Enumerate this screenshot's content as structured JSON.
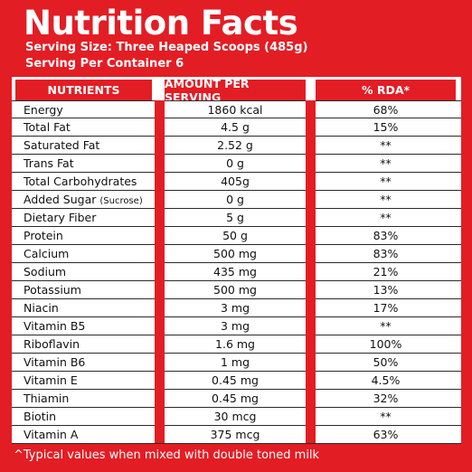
{
  "title": "Nutrition Facts",
  "serving_size": "Serving Size: Three Heaped Scoops (485g)",
  "servings_per_container": "Serving Per Container 6",
  "headers": {
    "nutrients": "NUTRIENTS",
    "amount": "AMOUNT PER SERVING",
    "rda": "% RDA*"
  },
  "rows": [
    {
      "name": "Energy",
      "note": "",
      "amount": "1860 kcal",
      "rda": "68%"
    },
    {
      "name": "Total Fat",
      "note": "",
      "amount": "4.5 g",
      "rda": "15%"
    },
    {
      "name": "Saturated Fat",
      "note": "",
      "amount": "2.52 g",
      "rda": "**"
    },
    {
      "name": "Trans Fat",
      "note": "",
      "amount": "0 g",
      "rda": "**"
    },
    {
      "name": "Total Carbohydrates",
      "note": "",
      "amount": "405g",
      "rda": "**"
    },
    {
      "name": "Added Sugar",
      "note": "(Sucrose)",
      "amount": "0 g",
      "rda": "**"
    },
    {
      "name": "Dietary Fiber",
      "note": "",
      "amount": "5 g",
      "rda": "**"
    },
    {
      "name": "Protein",
      "note": "",
      "amount": "50 g",
      "rda": "83%"
    },
    {
      "name": "Calcium",
      "note": "",
      "amount": "500 mg",
      "rda": "83%"
    },
    {
      "name": "Sodium",
      "note": "",
      "amount": "435 mg",
      "rda": "21%"
    },
    {
      "name": "Potassium",
      "note": "",
      "amount": "500 mg",
      "rda": "13%"
    },
    {
      "name": "Niacin",
      "note": "",
      "amount": "3 mg",
      "rda": "17%"
    },
    {
      "name": "Vitamin B5",
      "note": "",
      "amount": "3 mg",
      "rda": "**"
    },
    {
      "name": "Riboflavin",
      "note": "",
      "amount": "1.6 mg",
      "rda": "100%"
    },
    {
      "name": "Vitamin B6",
      "note": "",
      "amount": "1 mg",
      "rda": "50%"
    },
    {
      "name": "Vitamin E",
      "note": "",
      "amount": "0.45 mg",
      "rda": "4.5%"
    },
    {
      "name": "Thiamin",
      "note": "",
      "amount": "0.45 mg",
      "rda": "32%"
    },
    {
      "name": "Biotin",
      "note": "",
      "amount": "30 mcg",
      "rda": "**"
    },
    {
      "name": "Vitamin A",
      "note": "",
      "amount": "375 mcg",
      "rda": "63%"
    }
  ],
  "footer": "^Typical values when mixed with double toned milk",
  "colors": {
    "brand_red": "#e31d24",
    "text": "#111111"
  }
}
